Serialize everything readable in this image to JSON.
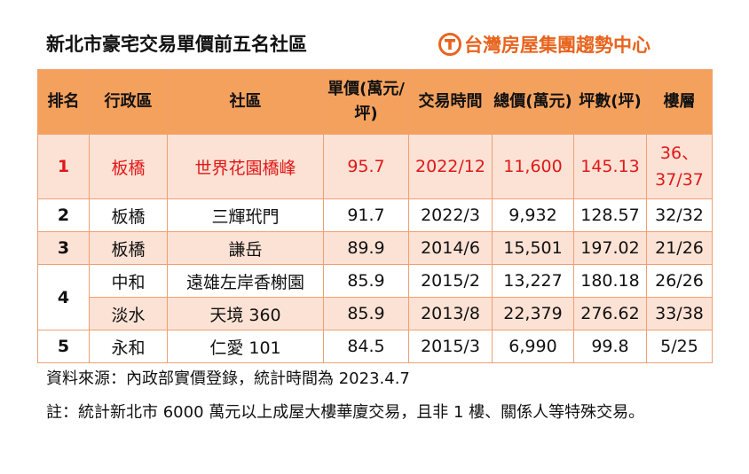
{
  "title": "新北市豪宅交易單價前五名社區",
  "brand": {
    "text": "台灣房屋集團趨勢中心",
    "icon": "brand-logo-icon",
    "color": "#e8641e"
  },
  "headers": {
    "rank": "排名",
    "district": "行政區",
    "community": "社區",
    "unit_price": "單價(萬元/坪)",
    "date": "交易時間",
    "total": "總價(萬元)",
    "area": "坪數(坪)",
    "floor": "樓層"
  },
  "rows": [
    {
      "rank": "1",
      "district": "板橋",
      "community": "世界花園橋峰",
      "unit_price": "95.7",
      "date": "2022/12",
      "total": "11,600",
      "area": "145.13",
      "floor": "36、37/37"
    },
    {
      "rank": "2",
      "district": "板橋",
      "community": "三輝玳門",
      "unit_price": "91.7",
      "date": "2022/3",
      "total": "9,932",
      "area": "128.57",
      "floor": "32/32"
    },
    {
      "rank": "3",
      "district": "板橋",
      "community": "謙岳",
      "unit_price": "89.9",
      "date": "2014/6",
      "total": "15,501",
      "area": "197.02",
      "floor": "21/26"
    },
    {
      "rank": "4",
      "district": "中和",
      "community": "遠雄左岸香榭園",
      "unit_price": "85.9",
      "date": "2015/2",
      "total": "13,227",
      "area": "180.18",
      "floor": "26/26"
    },
    {
      "rank": "",
      "district": "淡水",
      "community": "天境 360",
      "unit_price": "85.9",
      "date": "2013/8",
      "total": "22,379",
      "area": "276.62",
      "floor": "33/38"
    },
    {
      "rank": "5",
      "district": "永和",
      "community": "仁愛 101",
      "unit_price": "84.5",
      "date": "2015/3",
      "total": "6,990",
      "area": "99.8",
      "floor": "5/25"
    }
  ],
  "source": "資料來源：內政部實價登錄，統計時間為 2023.4.7",
  "note": "註：統計新北市 6000 萬元以上成屋大樓華廈交易，且非 1 樓、關係人等特殊交易。",
  "colors": {
    "header_bg": "#f4a15e",
    "highlight_bg": "#fbe2d5",
    "highlight_text": "#e01818",
    "border": "#f0a070"
  }
}
